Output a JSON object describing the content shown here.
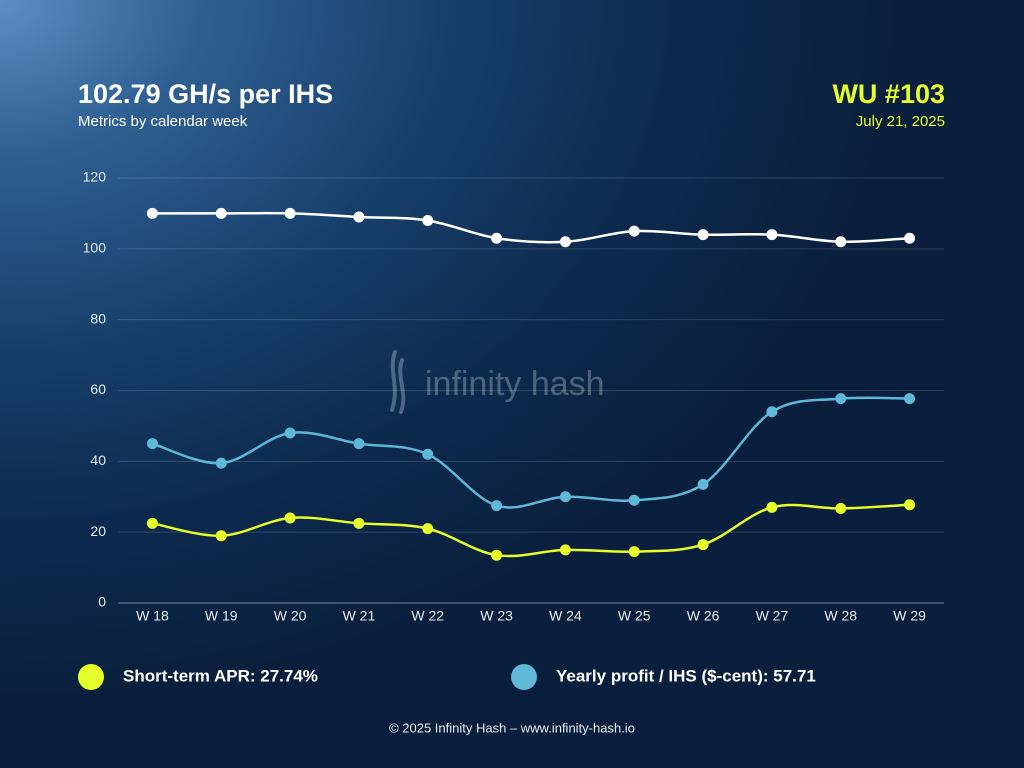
{
  "chart_data": {
    "type": "line",
    "title": "102.79 GH/s per IHS",
    "subtitle": "Metrics by calendar week",
    "badge": "WU #103",
    "date": "July 21, 2025",
    "watermark": "infinity hash",
    "footer": "© 2025 Infinity Hash – www.infinity-hash.io",
    "categories": [
      "W 18",
      "W 19",
      "W 20",
      "W 21",
      "W 22",
      "W 23",
      "W 24",
      "W 25",
      "W 26",
      "W 27",
      "W 28",
      "W 29"
    ],
    "series": [
      {
        "color": "#ffffff",
        "values": [
          110,
          110,
          110,
          109,
          108,
          103,
          102,
          105,
          104,
          104,
          102,
          103
        ]
      },
      {
        "name": "Yearly profit / IHS ($-cent): 57.71",
        "color": "#5fb8d6",
        "values": [
          45,
          39.5,
          48,
          45,
          42,
          27.5,
          30,
          29,
          33.5,
          54,
          57.7,
          57.71
        ]
      },
      {
        "name": "Short-term APR: 27.74%",
        "color": "#e6ff2a",
        "values": [
          22.5,
          19,
          24,
          22.5,
          21,
          13.5,
          15,
          14.5,
          16.5,
          27,
          26.7,
          27.74
        ]
      }
    ],
    "ylim": [
      0,
      120
    ],
    "yticks": [
      0,
      20,
      40,
      60,
      80,
      100,
      120
    ],
    "grid": true
  }
}
